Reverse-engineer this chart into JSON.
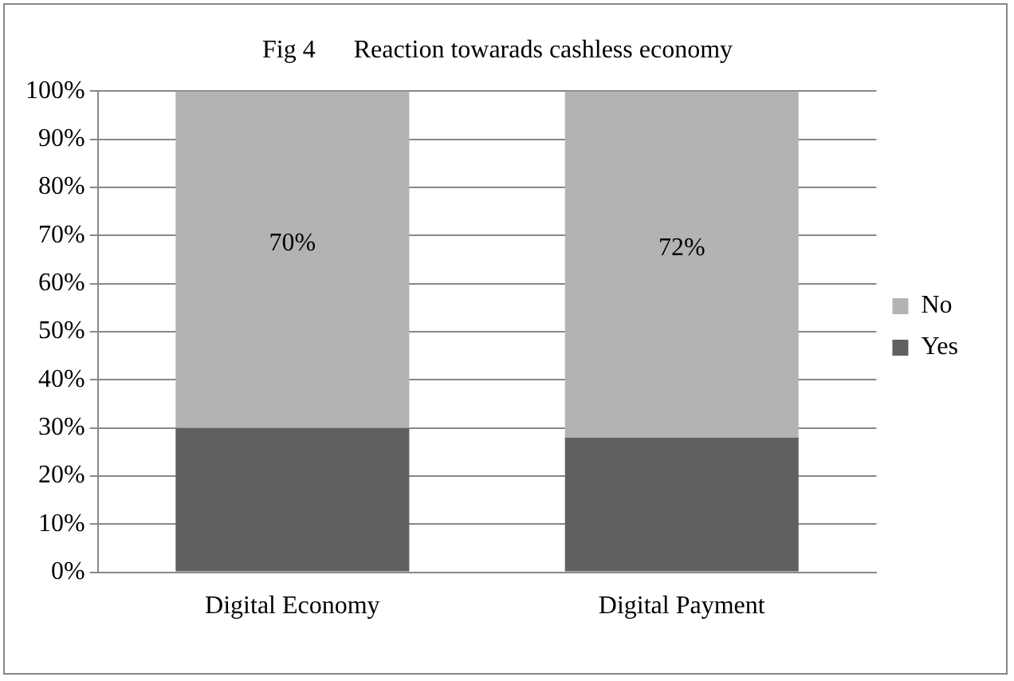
{
  "chart_data": {
    "type": "bar",
    "title": "Fig 4      Reaction towarads cashless economy",
    "categories": [
      "Digital Economy",
      "Digital Payment"
    ],
    "stacked": true,
    "series": [
      {
        "name": "Yes",
        "color": "#606060",
        "values": [
          30,
          28
        ]
      },
      {
        "name": "No",
        "color": "#b3b3b3",
        "values": [
          70,
          72
        ],
        "value_labels": [
          "70%",
          "72%"
        ]
      }
    ],
    "ylim": [
      0,
      100
    ],
    "yticks": [
      {
        "value": 0,
        "label": "0%"
      },
      {
        "value": 10,
        "label": "10%"
      },
      {
        "value": 20,
        "label": "20%"
      },
      {
        "value": 30,
        "label": "30%"
      },
      {
        "value": 40,
        "label": "40%"
      },
      {
        "value": 50,
        "label": "50%"
      },
      {
        "value": 60,
        "label": "60%"
      },
      {
        "value": 70,
        "label": "70%"
      },
      {
        "value": 80,
        "label": "80%"
      },
      {
        "value": 90,
        "label": "90%"
      },
      {
        "value": 100,
        "label": "100%"
      }
    ],
    "grid": "y",
    "legend": "right"
  }
}
